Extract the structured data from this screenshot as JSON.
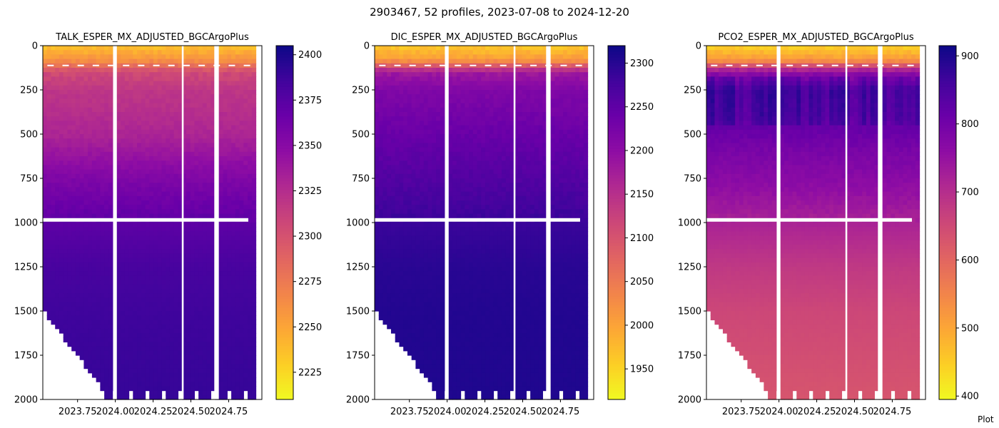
{
  "figure": {
    "suptitle": "2903467, 52 profiles, 2023-07-08 to 2024-12-20",
    "footer_note": "Plot"
  },
  "chart_data": [
    {
      "type": "heatmap",
      "title": "TALK_ESPER_MX_ADJUSTED_BGCArgoPlus",
      "colormap": "plasma_r",
      "x_range": [
        2023.52,
        2024.97
      ],
      "x_ticks": [
        2023.75,
        2024.0,
        2024.25,
        2024.5,
        2024.75
      ],
      "x_tick_labels": [
        "2023.75",
        "2024.00",
        "2024.25",
        "2024.50",
        "2024.75"
      ],
      "y_range": [
        0,
        2000
      ],
      "y_inverted": true,
      "y_ticks": [
        0,
        250,
        500,
        750,
        1000,
        1250,
        1500,
        1750,
        2000
      ],
      "y_tick_labels": [
        "0",
        "250",
        "500",
        "750",
        "1000",
        "1250",
        "1500",
        "1750",
        "2000"
      ],
      "colorbar": {
        "range": [
          2210,
          2405
        ],
        "ticks": [
          2225,
          2250,
          2275,
          2300,
          2325,
          2350,
          2375,
          2400
        ],
        "tick_labels": [
          "2225",
          "2250",
          "2275",
          "2300",
          "2325",
          "2350",
          "2375",
          "2400"
        ]
      },
      "depth_profile": [
        {
          "depth": 0,
          "value": 2235
        },
        {
          "depth": 80,
          "value": 2260
        },
        {
          "depth": 150,
          "value": 2305
        },
        {
          "depth": 250,
          "value": 2318
        },
        {
          "depth": 500,
          "value": 2330
        },
        {
          "depth": 750,
          "value": 2355
        },
        {
          "depth": 1000,
          "value": 2372
        },
        {
          "depth": 1250,
          "value": 2382
        },
        {
          "depth": 1500,
          "value": 2386
        },
        {
          "depth": 2000,
          "value": 2390
        }
      ]
    },
    {
      "type": "heatmap",
      "title": "DIC_ESPER_MX_ADJUSTED_BGCArgoPlus",
      "colormap": "plasma_r",
      "x_range": [
        2023.52,
        2024.97
      ],
      "x_ticks": [
        2023.75,
        2024.0,
        2024.25,
        2024.5,
        2024.75
      ],
      "x_tick_labels": [
        "2023.75",
        "2024.00",
        "2024.25",
        "2024.50",
        "2024.75"
      ],
      "y_range": [
        0,
        2000
      ],
      "y_inverted": true,
      "y_ticks": [
        0,
        250,
        500,
        750,
        1000,
        1250,
        1500,
        1750,
        2000
      ],
      "y_tick_labels": [
        "0",
        "250",
        "500",
        "750",
        "1000",
        "1250",
        "1500",
        "1750",
        "2000"
      ],
      "colorbar": {
        "range": [
          1915,
          2320
        ],
        "ticks": [
          1950,
          2000,
          2050,
          2100,
          2150,
          2200,
          2250,
          2300
        ],
        "tick_labels": [
          "1950",
          "2000",
          "2050",
          "2100",
          "2150",
          "2200",
          "2250",
          "2300"
        ]
      },
      "depth_profile": [
        {
          "depth": 0,
          "value": 1960
        },
        {
          "depth": 80,
          "value": 2010
        },
        {
          "depth": 150,
          "value": 2180
        },
        {
          "depth": 250,
          "value": 2215
        },
        {
          "depth": 500,
          "value": 2240
        },
        {
          "depth": 750,
          "value": 2262
        },
        {
          "depth": 1000,
          "value": 2285
        },
        {
          "depth": 1250,
          "value": 2298
        },
        {
          "depth": 1500,
          "value": 2303
        },
        {
          "depth": 2000,
          "value": 2306
        }
      ]
    },
    {
      "type": "heatmap",
      "title": "PCO2_ESPER_MX_ADJUSTED_BGCArgoPlus",
      "colormap": "plasma_r",
      "x_range": [
        2023.52,
        2024.97
      ],
      "x_ticks": [
        2023.75,
        2024.0,
        2024.25,
        2024.5,
        2024.75
      ],
      "x_tick_labels": [
        "2023.75",
        "2024.00",
        "2024.25",
        "2024.50",
        "2024.75"
      ],
      "y_range": [
        0,
        2000
      ],
      "y_inverted": true,
      "y_ticks": [
        0,
        250,
        500,
        750,
        1000,
        1250,
        1500,
        1750,
        2000
      ],
      "y_tick_labels": [
        "0",
        "250",
        "500",
        "750",
        "1000",
        "1250",
        "1500",
        "1750",
        "2000"
      ],
      "colorbar": {
        "range": [
          395,
          915
        ],
        "ticks": [
          400,
          500,
          600,
          700,
          800,
          900
        ],
        "tick_labels": [
          "400",
          "500",
          "600",
          "700",
          "800",
          "900"
        ]
      },
      "depth_profile": [
        {
          "depth": 0,
          "value": 440
        },
        {
          "depth": 80,
          "value": 520
        },
        {
          "depth": 150,
          "value": 760
        },
        {
          "depth": 250,
          "value": 840
        },
        {
          "depth": 400,
          "value": 830
        },
        {
          "depth": 600,
          "value": 790
        },
        {
          "depth": 800,
          "value": 760
        },
        {
          "depth": 1000,
          "value": 720
        },
        {
          "depth": 1250,
          "value": 680
        },
        {
          "depth": 1500,
          "value": 655
        },
        {
          "depth": 2000,
          "value": 630
        }
      ]
    }
  ]
}
